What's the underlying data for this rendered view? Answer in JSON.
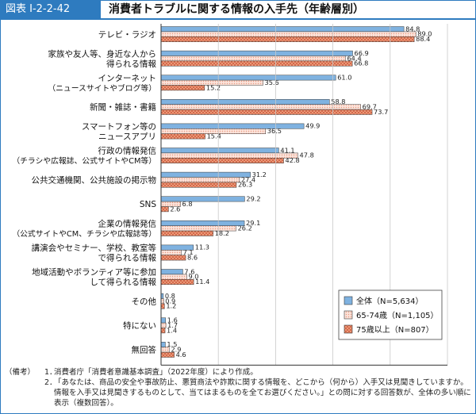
{
  "figure": {
    "label": "図表 I-2-2-42",
    "title": "消費者トラブルに関する情報の入手先（年齢層別）"
  },
  "chart_data": {
    "type": "bar",
    "orientation": "horizontal",
    "categories": [
      "テレビ・ラジオ",
      "家族や友人等、身近な人から\n得られる情報",
      "インターネット\n（ニュースサイトやブログ等）",
      "新聞・雑誌・書籍",
      "スマートフォン等の\nニュースアプリ",
      "行政の情報発信\n（チラシや広報誌、公式サイトやCM等）",
      "公共交通機関、公共施設の掲示物",
      "SNS",
      "企業の情報発信\n（公式サイトやCM、チラシや広報誌等）",
      "講演会やセミナー、学校、教室等\nで得られる情報",
      "地域活動やボランティア等に参加\nして得られる情報",
      "その他",
      "特にない",
      "無回答"
    ],
    "series": [
      {
        "name": "全体（N=5,634）",
        "color": "#7fb2e0",
        "pattern": "solid",
        "values": [
          84.8,
          66.9,
          61.0,
          58.8,
          49.9,
          41.1,
          31.2,
          29.2,
          29.1,
          11.3,
          7.6,
          0.8,
          1.6,
          1.5
        ]
      },
      {
        "name": "65-74歳（N=1,105）",
        "color": "#f7c8b8",
        "pattern": "dotted",
        "values": [
          89.0,
          64.4,
          35.6,
          69.7,
          36.5,
          47.8,
          27.4,
          6.8,
          26.2,
          7.1,
          9.0,
          0.9,
          1.7,
          2.9
        ]
      },
      {
        "name": "75歳以上（N=807）",
        "color": "#e88864",
        "pattern": "crosshatch",
        "values": [
          88.4,
          66.8,
          15.2,
          73.7,
          15.4,
          42.8,
          26.3,
          2.6,
          18.2,
          8.6,
          11.4,
          1.2,
          1.4,
          4.6
        ]
      }
    ],
    "xlim": [
      0,
      100
    ],
    "xticks": [
      0,
      20,
      40,
      60,
      80,
      100
    ],
    "xlabel": "（%）",
    "legend": "bottom-right"
  },
  "notes": {
    "head": "（備考）",
    "items": [
      {
        "num": "1．",
        "text": "消費者庁「消費者意識基本調査」（2022年度）により作成。"
      },
      {
        "num": "2．",
        "text": "「あなたは、商品の安全や事故防止、悪質商法や詐欺に関する情報を、どこから（何から）入手又は見聞きしていますか。情報を入手又は見聞きするものとして、当てはまるものを全てお選びください。」との問に対する回答数が、全体の多い順に表示（複数回答）。"
      }
    ]
  }
}
